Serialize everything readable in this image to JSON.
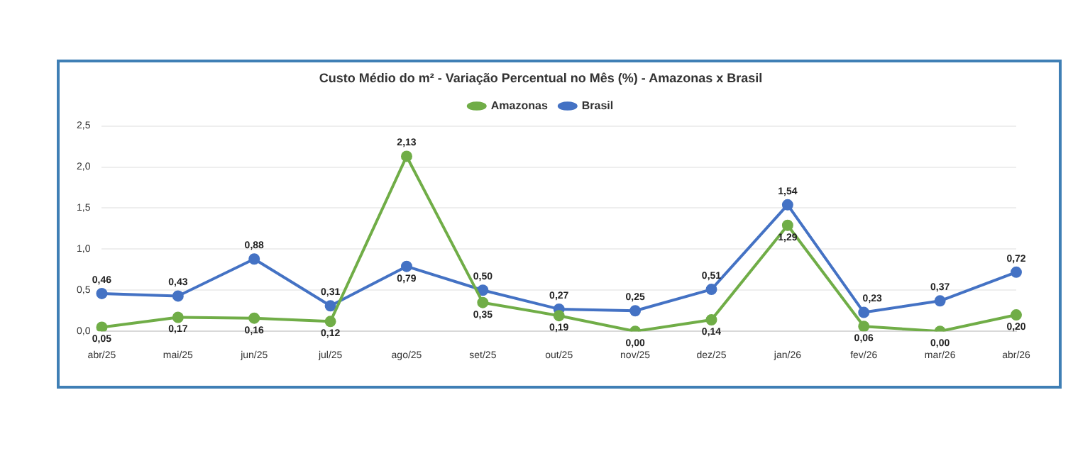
{
  "chart_data": {
    "type": "line",
    "title": "Custo Médio do m² - Variação Percentual no Mês (%) - Amazonas x Brasil",
    "categories": [
      "abr/25",
      "mai/25",
      "jun/25",
      "jul/25",
      "ago/25",
      "set/25",
      "out/25",
      "nov/25",
      "dez/25",
      "jan/26",
      "fev/26",
      "mar/26",
      "abr/26"
    ],
    "series": [
      {
        "name": "Amazonas",
        "color": "#70ad47",
        "values": [
          0.05,
          0.17,
          0.16,
          0.12,
          2.13,
          0.35,
          0.19,
          0.0,
          0.14,
          1.29,
          0.06,
          0.0,
          0.2
        ],
        "value_labels": [
          "0,05",
          "0,17",
          "0,16",
          "0,12",
          "2,13",
          "0,35",
          "0,19",
          "0,00",
          "0,14",
          "1,29",
          "0,06",
          "0,00",
          "0,20"
        ]
      },
      {
        "name": "Brasil",
        "color": "#4472c4",
        "values": [
          0.46,
          0.43,
          0.88,
          0.31,
          0.79,
          0.5,
          0.27,
          0.25,
          0.51,
          1.54,
          0.23,
          0.37,
          0.72
        ],
        "value_labels": [
          "0,46",
          "0,43",
          "0,88",
          "0,31",
          "0,79",
          "0,50",
          "0,27",
          "0,25",
          "0,51",
          "1,54",
          "0,23",
          "0,37",
          "0,72"
        ]
      }
    ],
    "ylim": [
      0,
      2.5
    ],
    "yticks": [
      {
        "value": 0,
        "label": "0,0"
      },
      {
        "value": 0.5,
        "label": "0,5"
      },
      {
        "value": 1,
        "label": "1,0"
      },
      {
        "value": 1.5,
        "label": "1,5"
      },
      {
        "value": 2,
        "label": "2,0"
      },
      {
        "value": 2.5,
        "label": "2,5"
      }
    ],
    "grid": "y",
    "legend": "top",
    "marker": "circle",
    "line_style": "solid"
  }
}
